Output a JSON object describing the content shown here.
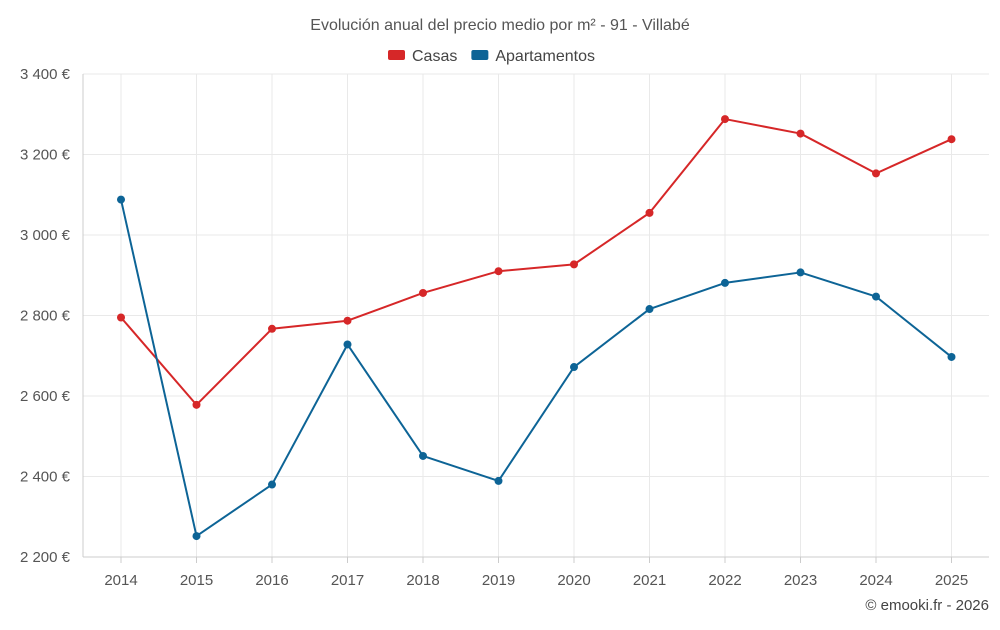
{
  "chart_data": {
    "type": "line",
    "title": "Evolución anual del precio medio por m² - 91 - Villabé",
    "categories": [
      "2014",
      "2015",
      "2016",
      "2017",
      "2018",
      "2019",
      "2020",
      "2021",
      "2022",
      "2023",
      "2024",
      "2025"
    ],
    "series": [
      {
        "name": "Casas",
        "color": "#d62728",
        "values": [
          2795,
          2578,
          2767,
          2787,
          2856,
          2910,
          2927,
          3055,
          3288,
          3252,
          3153,
          3238
        ]
      },
      {
        "name": "Apartamentos",
        "color": "#0d6496",
        "values": [
          3088,
          2252,
          2380,
          2728,
          2451,
          2389,
          2672,
          2816,
          2881,
          2907,
          2847,
          2697
        ]
      }
    ],
    "ylim": [
      2200,
      3400
    ],
    "yticks": [
      2200,
      2400,
      2600,
      2800,
      3000,
      3200,
      3400
    ],
    "ytick_labels": [
      "2 200 €",
      "2 400 €",
      "2 600 €",
      "2 800 €",
      "3 000 €",
      "3 200 €",
      "3 400 €"
    ],
    "xlabel": "",
    "ylabel": "",
    "grid": true,
    "legend_position": "top-center"
  },
  "credit": "© emooki.fr - 2026"
}
